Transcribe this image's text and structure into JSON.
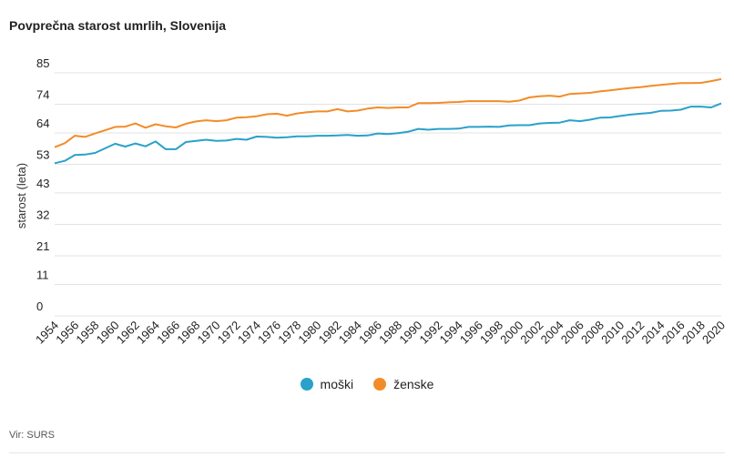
{
  "title": "Povprečna starost umrlih, Slovenija",
  "source": "Vir: SURS",
  "colors": {
    "moski": "#2aa1c9",
    "zenske": "#f28c28",
    "grid": "#e3e3e3"
  },
  "chart_data": {
    "type": "line",
    "title": "Povprečna starost umrlih, Slovenija",
    "ylabel": "starost (leta)",
    "xlabel": "",
    "ylim": [
      0,
      85
    ],
    "yticks": [
      0,
      11,
      21,
      32,
      43,
      53,
      64,
      74,
      85
    ],
    "grid": true,
    "legend_position": "bottom-center",
    "x": [
      1954,
      1955,
      1956,
      1957,
      1958,
      1959,
      1960,
      1961,
      1962,
      1963,
      1964,
      1965,
      1966,
      1967,
      1968,
      1969,
      1970,
      1971,
      1972,
      1973,
      1974,
      1975,
      1976,
      1977,
      1978,
      1979,
      1980,
      1981,
      1982,
      1983,
      1984,
      1985,
      1986,
      1987,
      1988,
      1989,
      1990,
      1991,
      1992,
      1993,
      1994,
      1995,
      1996,
      1997,
      1998,
      1999,
      2000,
      2001,
      2002,
      2003,
      2004,
      2005,
      2006,
      2007,
      2008,
      2009,
      2010,
      2011,
      2012,
      2013,
      2014,
      2015,
      2016,
      2017,
      2018,
      2019,
      2020
    ],
    "xticks": [
      1954,
      1956,
      1958,
      1960,
      1962,
      1964,
      1966,
      1968,
      1970,
      1972,
      1974,
      1976,
      1978,
      1980,
      1982,
      1984,
      1986,
      1988,
      1990,
      1992,
      1994,
      1996,
      1998,
      2000,
      2002,
      2004,
      2006,
      2008,
      2010,
      2012,
      2014,
      2016,
      2018,
      2020
    ],
    "series": [
      {
        "name": "moški",
        "color": "#2aa1c9",
        "values": [
          53.4,
          54.2,
          56.3,
          56.4,
          57.0,
          58.6,
          60.2,
          59.2,
          60.3,
          59.3,
          61.0,
          58.3,
          58.3,
          60.8,
          61.2,
          61.6,
          61.2,
          61.3,
          61.9,
          61.6,
          62.7,
          62.6,
          62.3,
          62.5,
          62.8,
          62.8,
          63.0,
          63.0,
          63.1,
          63.3,
          63.0,
          63.1,
          63.8,
          63.6,
          63.9,
          64.4,
          65.4,
          65.1,
          65.4,
          65.4,
          65.5,
          66.1,
          66.1,
          66.2,
          66.1,
          66.6,
          66.7,
          66.7,
          67.3,
          67.5,
          67.6,
          68.4,
          68.1,
          68.6,
          69.3,
          69.4,
          69.9,
          70.4,
          70.7,
          71.0,
          71.7,
          71.8,
          72.1,
          73.2,
          73.2,
          72.9,
          74.3
        ]
      },
      {
        "name": "ženske",
        "color": "#f28c28",
        "values": [
          59.0,
          60.4,
          63.0,
          62.6,
          63.8,
          64.9,
          66.1,
          66.2,
          67.3,
          65.8,
          67.0,
          66.3,
          65.9,
          67.2,
          68.0,
          68.4,
          68.1,
          68.4,
          69.3,
          69.5,
          69.8,
          70.5,
          70.7,
          70.0,
          70.8,
          71.2,
          71.5,
          71.5,
          72.3,
          71.5,
          71.8,
          72.5,
          72.9,
          72.7,
          72.9,
          72.9,
          74.4,
          74.4,
          74.5,
          74.7,
          74.8,
          75.1,
          75.1,
          75.1,
          75.1,
          74.9,
          75.3,
          76.4,
          76.8,
          77.0,
          76.7,
          77.6,
          77.8,
          78.0,
          78.5,
          78.9,
          79.3,
          79.7,
          80.0,
          80.4,
          80.8,
          81.1,
          81.4,
          81.4,
          81.5,
          82.1,
          82.8
        ]
      }
    ]
  }
}
